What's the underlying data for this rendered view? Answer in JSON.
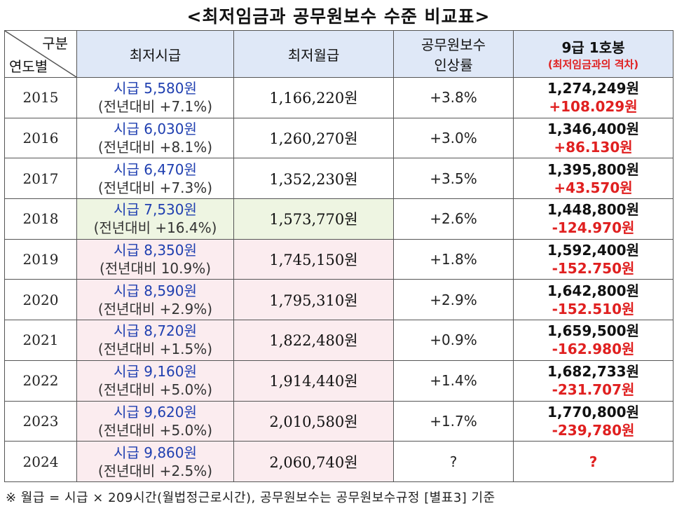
{
  "title": "<최저임금과 공무원보수 수준 비교표>",
  "header": {
    "corner_top": "구분",
    "corner_bottom": "연도별",
    "col_hourly": "최저시급",
    "col_monthly": "최저월급",
    "col_raise_line1": "공무원보수",
    "col_raise_line2": "인상률",
    "col_grade_line1": "9급 1호봉",
    "col_grade_line2": "(최저임금과의 격차)"
  },
  "rows": [
    {
      "year": "2015",
      "hourly": "시급 5,580원",
      "yoy": "(전년대비 +7.1%)",
      "monthly": "1,166,220원",
      "raise": "+3.8%",
      "salary": "1,274,249원",
      "gap": "+108.029원"
    },
    {
      "year": "2016",
      "hourly": "시급 6,030원",
      "yoy": "(전년대비 +8.1%)",
      "monthly": "1,260,270원",
      "raise": "+3.0%",
      "salary": "1,346,400원",
      "gap": "+86.130원"
    },
    {
      "year": "2017",
      "hourly": "시급 6,470원",
      "yoy": "(전년대비 +7.3%)",
      "monthly": "1,352,230원",
      "raise": "+3.5%",
      "salary": "1,395,800원",
      "gap": "+43.570원"
    },
    {
      "year": "2018",
      "hourly": "시급 7,530원",
      "yoy": "(전년대비 +16.4%)",
      "monthly": "1,573,770원",
      "raise": "+2.6%",
      "salary": "1,448,800원",
      "gap": "-124.970원"
    },
    {
      "year": "2019",
      "hourly": "시급 8,350원",
      "yoy": "(전년대비 10.9%)",
      "monthly": "1,745,150원",
      "raise": "+1.8%",
      "salary": "1,592,400원",
      "gap": "-152.750원"
    },
    {
      "year": "2020",
      "hourly": "시급 8,590원",
      "yoy": "(전년대비 +2.9%)",
      "monthly": "1,795,310원",
      "raise": "+2.9%",
      "salary": "1,642,800원",
      "gap": "-152.510원"
    },
    {
      "year": "2021",
      "hourly": "시급 8,720원",
      "yoy": "(전년대비 +1.5%)",
      "monthly": "1,822,480원",
      "raise": "+0.9%",
      "salary": "1,659,500원",
      "gap": "-162.980원"
    },
    {
      "year": "2022",
      "hourly": "시급 9,160원",
      "yoy": "(전년대비 +5.0%)",
      "monthly": "1,914,440원",
      "raise": "+1.4%",
      "salary": "1,682,733원",
      "gap": "-231.707원"
    },
    {
      "year": "2023",
      "hourly": "시급 9,620원",
      "yoy": "(전년대비 +5.0%)",
      "monthly": "2,010,580원",
      "raise": "+1.7%",
      "salary": "1,770,800원",
      "gap": "-239,780원"
    },
    {
      "year": "2024",
      "hourly": "시급 9,860원",
      "yoy": "(전년대비 +2.5%)",
      "monthly": "2,060,740원",
      "raise": "?",
      "salary": "",
      "gap": "?"
    }
  ],
  "footnote": "※ 월급 = 시급 × 209시간(월법정근로시간),  공무원보수는 공무원보수규정 [별표3] 기준",
  "colors": {
    "header_bg": "#dfe8f7",
    "highlight_2018": "#eef5e2",
    "highlight_2019_on": "#fbecef",
    "hourly_text": "#1f3fb0",
    "gap_text": "#e02020"
  }
}
